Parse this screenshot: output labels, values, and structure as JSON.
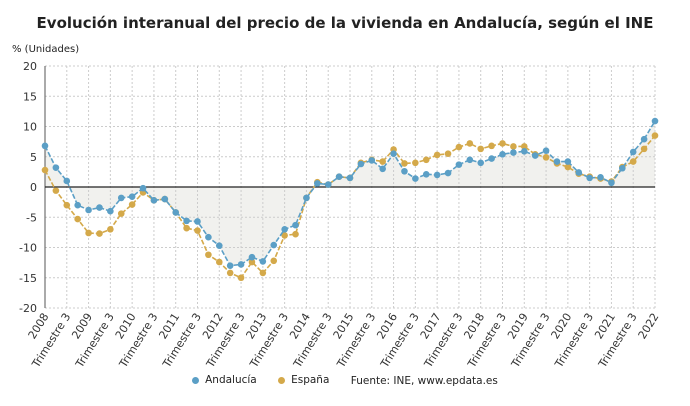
{
  "title": "Evolución interanual del precio de la vivienda en Andalucía, según el INE",
  "source": "Fuente: INE, www.epdata.es",
  "chart_data": {
    "type": "line",
    "title": "Evolución interanual del precio de la vivienda en Andalucía, según el INE",
    "ylabel": "% (Unidades)",
    "ylim": [
      -20,
      20
    ],
    "yticks": [
      20,
      15,
      10,
      5,
      0,
      -5,
      -10,
      -15,
      -20
    ],
    "grid": true,
    "legend": "bottom",
    "xtick_labels": [
      "2008",
      "Trimestre 3",
      "2009",
      "Trimestre 3",
      "2010",
      "Trimestre 3",
      "2011",
      "Trimestre 3",
      "2012",
      "Trimestre 3",
      "2013",
      "Trimestre 3",
      "2014",
      "Trimestre 3",
      "2015",
      "Trimestre 3",
      "2016",
      "Trimestre 3",
      "2017",
      "Trimestre 3",
      "2018",
      "Trimestre 3",
      "2019",
      "Trimestre 3",
      "2020",
      "Trimestre 3",
      "2021",
      "Trimestre 3",
      "2022"
    ],
    "series": [
      {
        "name": "Andalucía",
        "color": "#5b9fc6",
        "values": [
          6.8,
          3.2,
          1.0,
          -3.0,
          -3.8,
          -3.4,
          -4.0,
          -1.8,
          -1.6,
          -0.2,
          -2.2,
          -2.0,
          -4.2,
          -5.6,
          -5.7,
          -8.3,
          -9.7,
          -13.0,
          -12.8,
          -11.6,
          -12.3,
          -9.6,
          -7.0,
          -6.3,
          -1.8,
          0.6,
          0.4,
          1.7,
          1.5,
          3.8,
          4.4,
          3.0,
          5.5,
          2.6,
          1.4,
          2.1,
          2.0,
          2.3,
          3.7,
          4.5,
          4.0,
          4.7,
          5.4,
          5.7,
          5.9,
          5.2,
          6.0,
          4.2,
          4.2,
          2.4,
          1.5,
          1.6,
          0.7,
          3.1,
          5.8,
          7.9,
          10.9
        ]
      },
      {
        "name": "España",
        "color": "#d4a94a",
        "values": [
          2.8,
          -0.6,
          -3.0,
          -5.3,
          -7.6,
          -7.7,
          -7.0,
          -4.4,
          -2.9,
          -0.9,
          -2.2,
          -2.0,
          -4.2,
          -6.8,
          -7.2,
          -11.2,
          -12.4,
          -14.2,
          -15.0,
          -12.4,
          -14.2,
          -12.2,
          -8.0,
          -7.8,
          -1.8,
          0.8,
          0.4,
          1.7,
          1.5,
          4.0,
          4.5,
          4.2,
          6.2,
          3.9,
          4.0,
          4.5,
          5.3,
          5.5,
          6.6,
          7.2,
          6.3,
          6.8,
          7.2,
          6.7,
          6.7,
          5.4,
          4.9,
          3.9,
          3.3,
          2.2,
          1.7,
          1.4,
          0.9,
          3.3,
          4.2,
          6.3,
          8.5
        ]
      }
    ]
  }
}
